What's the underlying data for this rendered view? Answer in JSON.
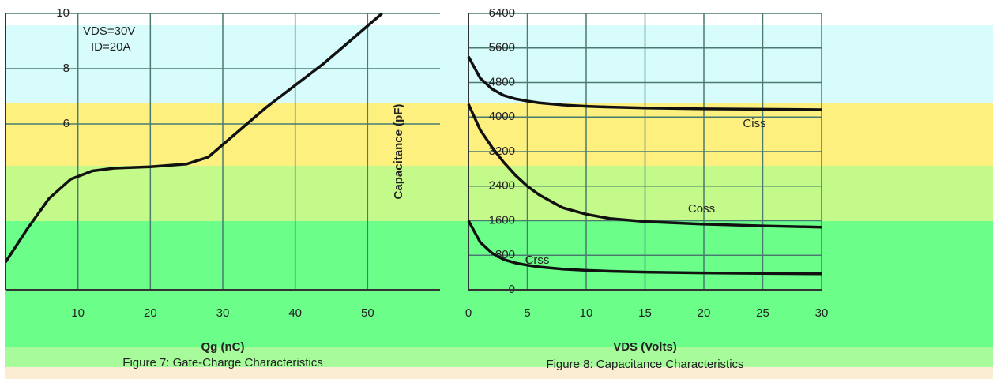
{
  "chart_data": [
    {
      "type": "line",
      "title": "Figure 7: Gate-Charge Characteristics",
      "xlabel": "Qg (nC)",
      "annotations": [
        "VDS=30V",
        "ID=20A"
      ],
      "x": [
        0,
        3,
        6,
        9,
        12,
        15,
        20,
        25,
        28,
        32,
        36,
        40,
        44,
        48,
        52
      ],
      "series": [
        {
          "color": "#111111",
          "values": [
            1.0,
            2.2,
            3.3,
            4.0,
            4.3,
            4.4,
            4.45,
            4.55,
            4.8,
            5.7,
            6.6,
            7.4,
            8.2,
            9.1,
            10
          ]
        }
      ],
      "xlim": [
        0,
        60
      ],
      "xticks": [
        10,
        20,
        30,
        40,
        50
      ],
      "ylim": [
        0,
        10
      ],
      "yticks": [
        6,
        8,
        10
      ],
      "grid": true
    },
    {
      "type": "line",
      "title": "Figure 8: Capacitance Characteristics",
      "xlabel": "VDS (Volts)",
      "ylabel": "Capacitance (pF)",
      "annotations": [
        "Ciss",
        "Coss",
        "Crss"
      ],
      "x": [
        0,
        1,
        2,
        3,
        4,
        5,
        6,
        8,
        10,
        12,
        15,
        20,
        25,
        30
      ],
      "series": [
        {
          "color": "#111111",
          "values": [
            5400,
            4900,
            4650,
            4500,
            4420,
            4370,
            4330,
            4280,
            4250,
            4230,
            4210,
            4190,
            4180,
            4170
          ]
        },
        {
          "color": "#111111",
          "values": [
            4300,
            3700,
            3300,
            2950,
            2650,
            2400,
            2200,
            1900,
            1750,
            1650,
            1580,
            1520,
            1480,
            1450
          ]
        },
        {
          "color": "#111111",
          "values": [
            1600,
            1100,
            850,
            700,
            620,
            570,
            530,
            480,
            450,
            430,
            410,
            390,
            380,
            370
          ]
        }
      ],
      "xlim": [
        0,
        30
      ],
      "xticks": [
        0,
        5,
        10,
        15,
        20,
        25,
        30
      ],
      "ylim": [
        0,
        6400
      ],
      "yticks": [
        0,
        800,
        1600,
        2400,
        3200,
        4000,
        4800,
        5600,
        6400
      ],
      "grid": true
    }
  ]
}
